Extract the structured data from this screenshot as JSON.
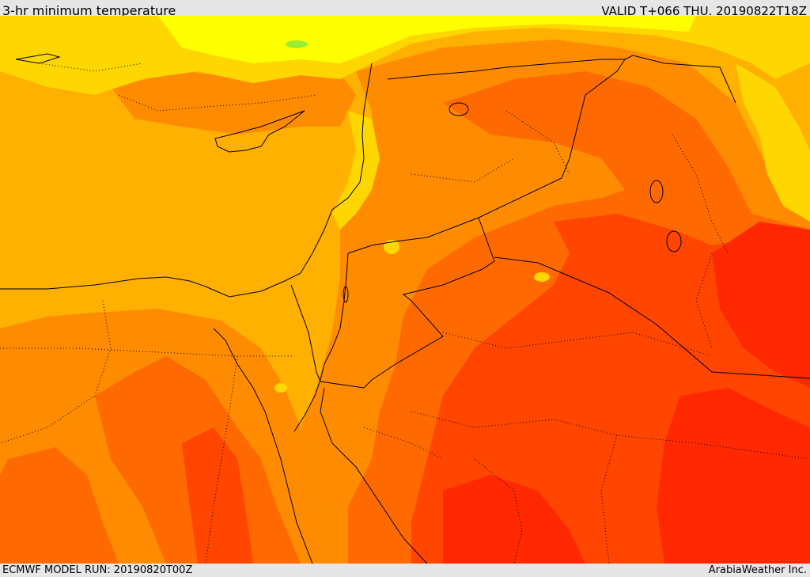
{
  "header": {
    "title": "3-hr minimum temperature",
    "valid": "VALID T+066 THU. 20190822T18Z"
  },
  "footer": {
    "model_run": "ECMWF MODEL RUN: 20190820T00Z",
    "credit": "ArabiaWeather Inc."
  },
  "map": {
    "layer": "3-hr minimum temperature",
    "colors": {
      "yellow": "#ffff00",
      "light_yellow_orange": "#ffd700",
      "yellow_orange": "#ffb000",
      "orange": "#ff8c00",
      "dark_orange": "#ff6a00",
      "red_orange": "#ff4500",
      "red": "#ff2800",
      "green_patch": "#99ee33",
      "border": "#000000"
    }
  }
}
